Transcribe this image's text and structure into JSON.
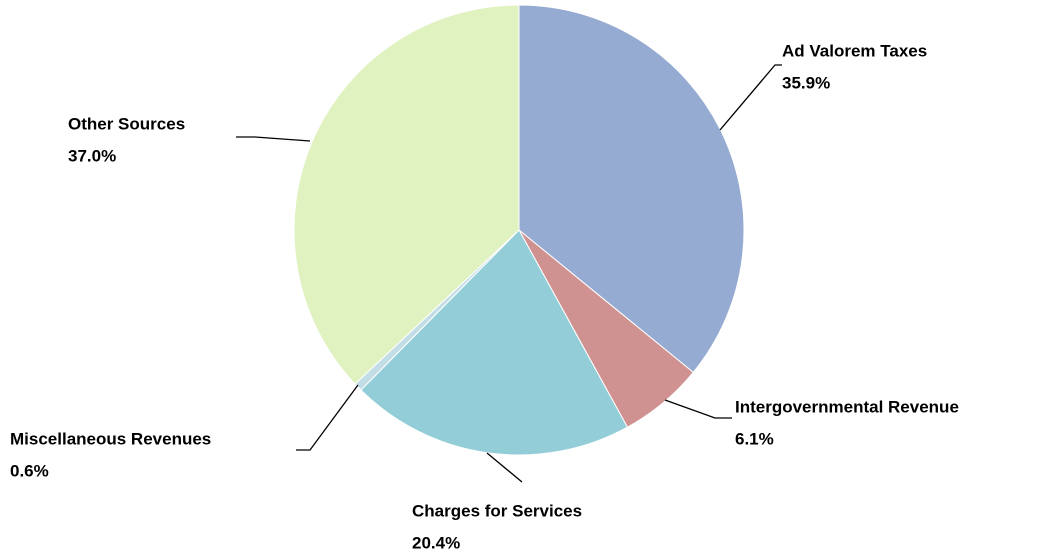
{
  "chart_data": {
    "type": "pie",
    "categories": [
      "Ad Valorem Taxes",
      "Intergovernmental Revenue",
      "Charges for Services",
      "Miscellaneous Revenues",
      "Other Sources"
    ],
    "values": [
      35.9,
      6.1,
      20.4,
      0.6,
      37.0
    ],
    "value_labels": [
      "35.9%",
      "6.1%",
      "20.4%",
      "0.6%",
      "37.0%"
    ],
    "colors": [
      "#95abd1",
      "#d09291",
      "#93cdd8",
      "#c3dde6",
      "#dff2c0"
    ]
  }
}
